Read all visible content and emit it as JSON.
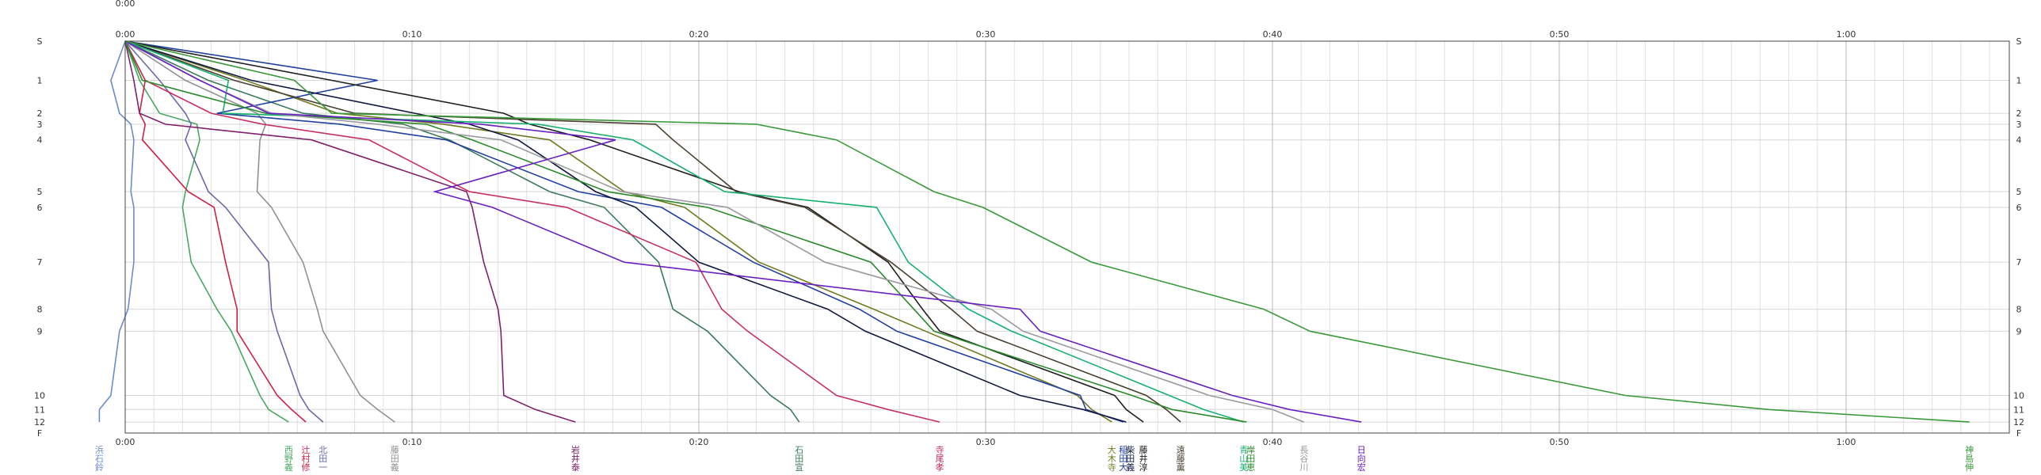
{
  "chart_data": {
    "type": "line",
    "x_ticks": [
      "0:00",
      "0:10",
      "0:20",
      "0:30",
      "0:40",
      "0:50",
      "1:00"
    ],
    "x_tick_minutes": [
      0,
      10,
      20,
      30,
      40,
      50,
      60
    ],
    "xlim_minutes": [
      -3,
      66
    ],
    "y_ticks": [
      "S",
      "1",
      "2",
      "3",
      "4",
      "5",
      "6",
      "7",
      "8",
      "9",
      "10",
      "11",
      "12",
      "F"
    ],
    "y_tick_values": [
      0,
      1,
      2,
      3,
      4,
      5,
      6,
      7,
      8,
      9,
      10,
      11,
      12,
      13
    ],
    "y_positions": [
      0,
      2.5,
      4.6,
      5.3,
      6.3,
      9.6,
      10.6,
      14.1,
      17.1,
      18.5,
      22.6,
      23.5,
      24.3,
      25
    ],
    "grid": true,
    "top_label": "0:00",
    "series": [
      {
        "name": "浜石鈴",
        "color": "#6a8ccf",
        "x": [
          0,
          -0.5,
          -0.2,
          0.2,
          0.3,
          0.2,
          0.3,
          0.3,
          0.1,
          -0.2,
          -0.5,
          -0.9,
          -0.9
        ]
      },
      {
        "name": "西野義",
        "color": "#4aa860",
        "x": [
          0,
          0.5,
          1.2,
          2.5,
          2.6,
          2.1,
          2.0,
          2.3,
          3.2,
          3.7,
          4.7,
          5.0,
          5.7
        ]
      },
      {
        "name": "辻村修",
        "color": "#d02048",
        "x": [
          0,
          0.7,
          0.5,
          0.7,
          0.6,
          2.2,
          3.1,
          3.5,
          3.9,
          3.9,
          5.3,
          5.8,
          6.3
        ]
      },
      {
        "name": "北田一",
        "color": "#6a6aa8",
        "x": [
          0,
          1.2,
          2.1,
          2.3,
          2.1,
          2.9,
          3.5,
          5.0,
          5.1,
          5.3,
          6.1,
          6.4,
          6.9
        ]
      },
      {
        "name": "藤田義",
        "color": "#909098",
        "x": [
          0,
          2.1,
          4.6,
          4.9,
          4.7,
          4.6,
          5.1,
          6.2,
          6.7,
          6.9,
          8.2,
          8.8,
          9.4
        ]
      },
      {
        "name": "岩井泰",
        "color": "#80206a",
        "x": [
          0,
          0.3,
          0.5,
          1.4,
          6.5,
          11.9,
          12.1,
          12.5,
          13.0,
          13.1,
          13.2,
          14.3,
          15.7
        ]
      },
      {
        "name": "石田宣",
        "color": "#3a7a5a",
        "x": [
          0,
          2.9,
          6.2,
          9.7,
          11.3,
          14.8,
          16.7,
          18.6,
          19.1,
          20.3,
          22.5,
          23.2,
          23.5
        ]
      },
      {
        "name": "寺尾孝",
        "color": "#c83060",
        "x": [
          0,
          0.7,
          3.0,
          4.8,
          8.5,
          12.0,
          15.4,
          19.9,
          20.8,
          21.7,
          24.8,
          26.6,
          28.4
        ]
      },
      {
        "name": "大木寺",
        "color": "#707a20",
        "x": [
          0,
          4.2,
          7.4,
          11.1,
          14.8,
          17.4,
          19.5,
          22.1,
          26.1,
          27.9,
          33.2,
          33.7,
          34.4
        ]
      },
      {
        "name": "稲田大",
        "color": "#2040a0",
        "x": [
          0,
          8.8,
          3.2,
          7.5,
          11.2,
          15.8,
          18.7,
          21.9,
          25.6,
          26.9,
          33.3,
          33.5,
          34.8
        ]
      },
      {
        "name": "柴田義",
        "color": "#101840",
        "x": [
          0,
          4.4,
          10.1,
          12.0,
          13.7,
          16.4,
          17.8,
          20.0,
          24.5,
          25.8,
          31.2,
          33.4,
          34.9
        ]
      },
      {
        "name": "藤井淳",
        "color": "#202020",
        "x": [
          0,
          7.2,
          13.2,
          14.1,
          16.2,
          21.4,
          23.8,
          26.6,
          27.8,
          28.4,
          34.5,
          34.9,
          35.5
        ]
      },
      {
        "name": "遠藤薫",
        "color": "#4a4030",
        "x": [
          0,
          3.8,
          8.0,
          18.5,
          19.1,
          21.3,
          23.7,
          26.7,
          28.8,
          29.7,
          35.6,
          36.3,
          36.8
        ]
      },
      {
        "name": "青山美",
        "color": "#18b070",
        "x": [
          0,
          3.6,
          3.4,
          14.4,
          17.7,
          20.9,
          26.2,
          27.3,
          29.4,
          30.9,
          36.4,
          37.6,
          39.0
        ]
      },
      {
        "name": "岸田恵",
        "color": "#2a8a2a",
        "x": [
          0,
          0.6,
          4.9,
          10.5,
          12.1,
          16.8,
          20.3,
          26.0,
          27.5,
          28.2,
          35.1,
          36.5,
          39.1
        ]
      },
      {
        "name": "長谷川",
        "color": "#9a9aa0",
        "x": [
          0,
          2.6,
          5.1,
          8.8,
          13.1,
          17.3,
          21.0,
          24.4,
          30.2,
          31.3,
          37.8,
          40.0,
          41.1
        ]
      },
      {
        "name": "日向宏",
        "color": "#6a20c0",
        "x": [
          0,
          2.6,
          5.0,
          12.4,
          17.1,
          10.8,
          12.8,
          17.4,
          31.2,
          31.9,
          38.6,
          40.6,
          43.1
        ]
      },
      {
        "name": "神島伸",
        "color": "#3a9a3a",
        "x": [
          0,
          5.9,
          7.2,
          22.0,
          24.8,
          28.2,
          29.9,
          33.7,
          39.7,
          41.3,
          52.3,
          57.3,
          64.3
        ]
      }
    ]
  }
}
